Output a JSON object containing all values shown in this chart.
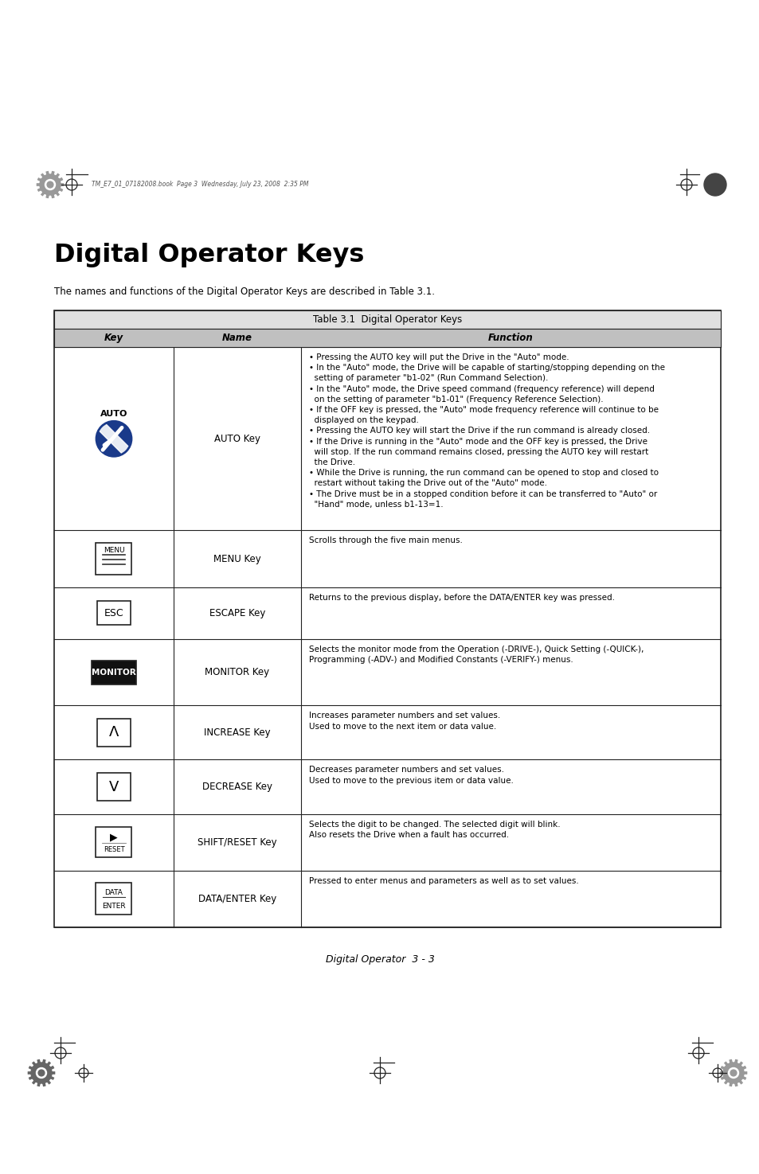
{
  "title": "Digital Operator Keys",
  "subtitle": "The names and functions of the Digital Operator Keys are described in Table 3.1.",
  "table_title": "Table 3.1  Digital Operator Keys",
  "col_headers": [
    "Key",
    "Name",
    "Function"
  ],
  "rows": [
    {
      "key_type": "auto",
      "name": "AUTO Key",
      "function": "• Pressing the AUTO key will put the Drive in the \"Auto\" mode.\n• In the \"Auto\" mode, the Drive will be capable of starting/stopping depending on the\n  setting of parameter \"b1-02\" (Run Command Selection).\n• In the \"Auto\" mode, the Drive speed command (frequency reference) will depend\n  on the setting of parameter \"b1-01\" (Frequency Reference Selection).\n• If the OFF key is pressed, the \"Auto\" mode frequency reference will continue to be\n  displayed on the keypad.\n• Pressing the AUTO key will start the Drive if the run command is already closed.\n• If the Drive is running in the \"Auto\" mode and the OFF key is pressed, the Drive\n  will stop. If the run command remains closed, pressing the AUTO key will restart\n  the Drive.\n• While the Drive is running, the run command can be opened to stop and closed to\n  restart without taking the Drive out of the \"Auto\" mode.\n• The Drive must be in a stopped condition before it can be transferred to \"Auto\" or\n  \"Hand\" mode, unless b1-13=1."
    },
    {
      "key_type": "menu",
      "name": "MENU Key",
      "function": "Scrolls through the five main menus."
    },
    {
      "key_type": "esc",
      "name": "ESCAPE Key",
      "function": "Returns to the previous display, before the DATA/ENTER key was pressed."
    },
    {
      "key_type": "monitor",
      "name": "MONITOR Key",
      "function": "Selects the monitor mode from the Operation (-DRIVE-), Quick Setting (-QUICK-),\nProgramming (-ADV-) and Modified Constants (-VERIFY-) menus."
    },
    {
      "key_type": "increase",
      "name": "INCREASE Key",
      "function": "Increases parameter numbers and set values.\nUsed to move to the next item or data value."
    },
    {
      "key_type": "decrease",
      "name": "DECREASE Key",
      "function": "Decreases parameter numbers and set values.\nUsed to move to the previous item or data value."
    },
    {
      "key_type": "shift",
      "name": "SHIFT/RESET Key",
      "function": "Selects the digit to be changed. The selected digit will blink.\nAlso resets the Drive when a fault has occurred."
    },
    {
      "key_type": "data_enter",
      "name": "DATA/ENTER Key",
      "function": "Pressed to enter menus and parameters as well as to set values."
    }
  ],
  "footer_text": "Digital Operator  3 - 3",
  "header_text": "TM_E7_01_07182008.book  Page 3  Wednesday, July 23, 2008  2:35 PM",
  "bg_color": "#ffffff",
  "text_color": "#000000"
}
